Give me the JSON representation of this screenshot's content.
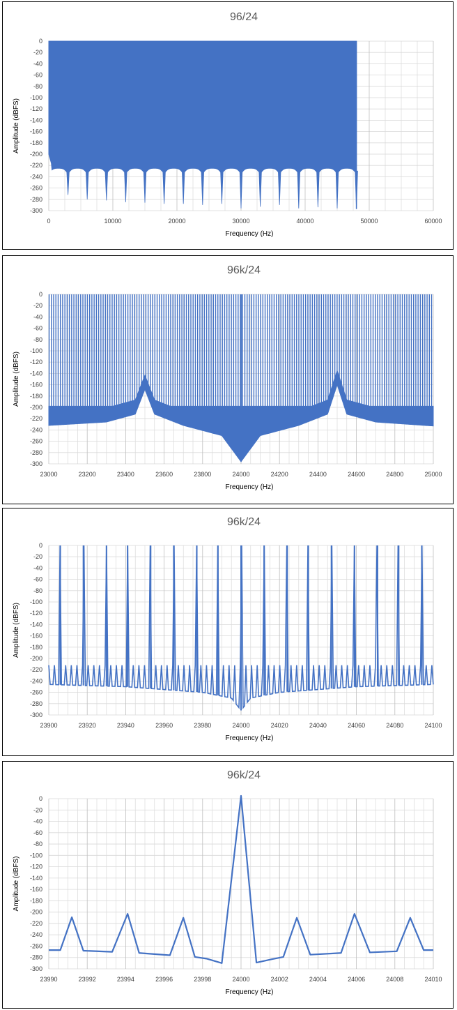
{
  "colors": {
    "series": "#4472C4",
    "grid": "#D9D9D9",
    "axis": "#BFBFBF",
    "frame": "#000000"
  },
  "chart_data": [
    {
      "type": "area",
      "title": "96/24",
      "xlabel": "Frequency (Hz)",
      "ylabel": "Amplitude (dBFS)",
      "xlim": [
        0,
        60000
      ],
      "ylim": [
        -300,
        0
      ],
      "x_ticks": [
        0,
        10000,
        20000,
        30000,
        40000,
        50000,
        60000
      ],
      "y_ticks": [
        0,
        -20,
        -40,
        -60,
        -80,
        -100,
        -120,
        -140,
        -160,
        -180,
        -200,
        -220,
        -240,
        -260,
        -280,
        -300
      ],
      "grid": true,
      "legend": "none",
      "description_values": {
        "band_top": 0,
        "band_end_hz": 48000,
        "floor_dbfs": -225,
        "notches": [
          {
            "x": 3000,
            "y": -272
          },
          {
            "x": 6000,
            "y": -280
          },
          {
            "x": 9000,
            "y": -282
          },
          {
            "x": 12000,
            "y": -285
          },
          {
            "x": 15000,
            "y": -286
          },
          {
            "x": 18000,
            "y": -288
          },
          {
            "x": 21000,
            "y": -288
          },
          {
            "x": 24000,
            "y": -290
          },
          {
            "x": 27000,
            "y": -288
          },
          {
            "x": 30000,
            "y": -296
          },
          {
            "x": 33000,
            "y": -293
          },
          {
            "x": 36000,
            "y": -290
          },
          {
            "x": 39000,
            "y": -296
          },
          {
            "x": 42000,
            "y": -294
          },
          {
            "x": 45000,
            "y": -296
          },
          {
            "x": 48000,
            "y": -297
          }
        ]
      }
    },
    {
      "type": "line",
      "title": "96k/24",
      "xlabel": "Frequency (Hz)",
      "ylabel": "Amplitude (dBFS)",
      "xlim": [
        23000,
        25000
      ],
      "ylim": [
        -300,
        0
      ],
      "x_ticks": [
        23000,
        23200,
        23400,
        23600,
        23800,
        24000,
        24200,
        24400,
        24600,
        24800,
        25000
      ],
      "y_ticks": [
        0,
        -20,
        -40,
        -60,
        -80,
        -100,
        -120,
        -140,
        -160,
        -180,
        -200,
        -220,
        -240,
        -260,
        -280,
        -300
      ],
      "grid": true,
      "legend": "none",
      "description_values": {
        "tone_spacing_hz": 11.7,
        "tone_level": 0,
        "envelope": [
          {
            "x": 23000,
            "y": -232
          },
          {
            "x": 23300,
            "y": -226
          },
          {
            "x": 23450,
            "y": -212
          },
          {
            "x": 23500,
            "y": -168
          },
          {
            "x": 23550,
            "y": -212
          },
          {
            "x": 23700,
            "y": -232
          },
          {
            "x": 23900,
            "y": -250
          },
          {
            "x": 24000,
            "y": -296
          },
          {
            "x": 24100,
            "y": -250
          },
          {
            "x": 24300,
            "y": -232
          },
          {
            "x": 24450,
            "y": -212
          },
          {
            "x": 24500,
            "y": -160
          },
          {
            "x": 24550,
            "y": -212
          },
          {
            "x": 24700,
            "y": -226
          },
          {
            "x": 25000,
            "y": -233
          }
        ],
        "upper_band": -198
      }
    },
    {
      "type": "line",
      "title": "96k/24",
      "xlabel": "Frequency (Hz)",
      "ylabel": "Amplitude (dBFS)",
      "xlim": [
        23900,
        24100
      ],
      "ylim": [
        -300,
        0
      ],
      "x_ticks": [
        23900,
        23920,
        23940,
        23960,
        23980,
        24000,
        24020,
        24040,
        24060,
        24080,
        24100
      ],
      "y_ticks": [
        0,
        -20,
        -40,
        -60,
        -80,
        -100,
        -120,
        -140,
        -160,
        -180,
        -200,
        -220,
        -240,
        -260,
        -280,
        -300
      ],
      "grid": true,
      "legend": "none",
      "description_values": {
        "peaks_x": [
          23906,
          23918,
          23930,
          23941,
          23953,
          23965,
          23977,
          23988,
          24000,
          24012,
          24024,
          24035,
          24047,
          24059,
          24071,
          24082,
          24094
        ],
        "peak_y": 0,
        "side_lobe_y": -212,
        "floor": [
          {
            "x": 23900,
            "y": -246
          },
          {
            "x": 23940,
            "y": -250
          },
          {
            "x": 23980,
            "y": -260
          },
          {
            "x": 23995,
            "y": -270
          },
          {
            "x": 24000,
            "y": -292
          },
          {
            "x": 24005,
            "y": -270
          },
          {
            "x": 24020,
            "y": -260
          },
          {
            "x": 24060,
            "y": -250
          },
          {
            "x": 24100,
            "y": -246
          }
        ]
      }
    },
    {
      "type": "line",
      "title": "96k/24",
      "xlabel": "Frequency (Hz)",
      "ylabel": "Amplitude (dBFS)",
      "xlim": [
        23990,
        24010
      ],
      "ylim": [
        -300,
        0
      ],
      "x_ticks": [
        23990,
        23992,
        23994,
        23996,
        23998,
        24000,
        24002,
        24004,
        24006,
        24008,
        24010
      ],
      "y_ticks": [
        0,
        -20,
        -40,
        -60,
        -80,
        -100,
        -120,
        -140,
        -160,
        -180,
        -200,
        -220,
        -240,
        -260,
        -280,
        -300
      ],
      "grid": true,
      "legend": "none",
      "series": [
        {
          "x": [
            23990,
            23990.6,
            23991.2,
            23991.8,
            23993.3,
            23994.1,
            23994.7,
            23996.3,
            23997,
            23997.6,
            23998.2,
            23999,
            24000,
            24000.8,
            24001.6,
            24002.2,
            24002.9,
            24003.6,
            24005.2,
            24005.9,
            24006.7,
            24008.1,
            24008.8,
            24009.5,
            24010
          ],
          "y": [
            -267,
            -267,
            -209,
            -268,
            -270,
            -203,
            -272,
            -276,
            -210,
            -279,
            -282,
            -290,
            5,
            -289,
            -283,
            -279,
            -210,
            -275,
            -272,
            -203,
            -271,
            -269,
            -210,
            -267,
            -267
          ]
        }
      ]
    }
  ]
}
